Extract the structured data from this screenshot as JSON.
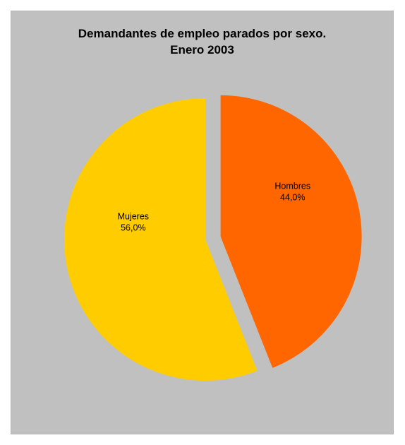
{
  "chart_data": {
    "type": "pie",
    "title": [
      "Demandantes de empleo parados por sexo.",
      "Enero 2003"
    ],
    "slices": [
      {
        "label": "Hombres",
        "value": 44.0,
        "value_label": "44,0%",
        "color": "#ff6600",
        "exploded": true
      },
      {
        "label": "Mujeres",
        "value": 56.0,
        "value_label": "56,0%",
        "color": "#ffcc00",
        "exploded": false
      }
    ],
    "start_angle_deg": 0,
    "direction": "clockwise",
    "background": "#c0c0c0",
    "legend": "none"
  }
}
